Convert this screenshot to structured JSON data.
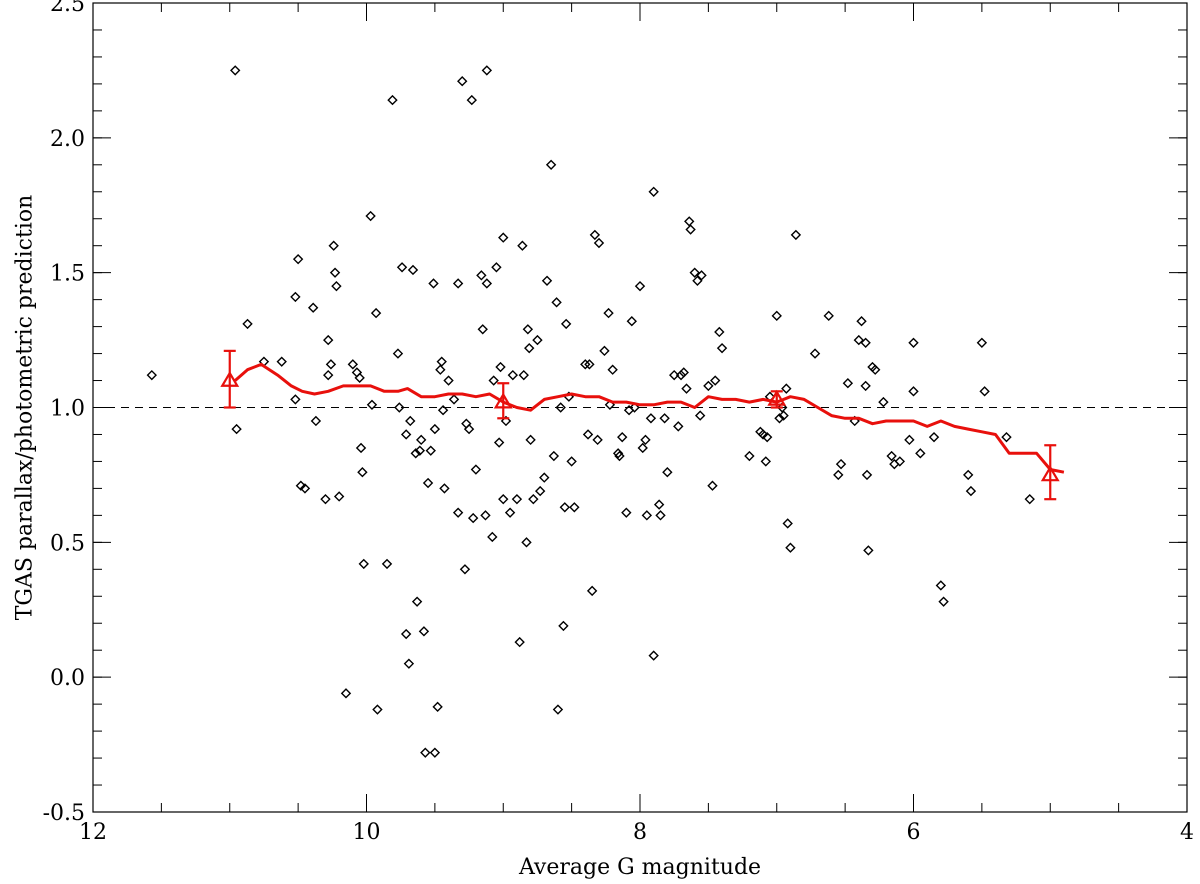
{
  "chart_data": {
    "type": "scatter",
    "xlabel": "Average G magnitude",
    "ylabel": "TGAS parallax/photometric prediction",
    "x_axis": {
      "min": 12,
      "max": 4,
      "reversed": true,
      "major_ticks": [
        12,
        10,
        8,
        6,
        4
      ],
      "minor_step": 0.5
    },
    "y_axis": {
      "min": -0.5,
      "max": 2.5,
      "major_ticks": [
        -0.5,
        0.0,
        0.5,
        1.0,
        1.5,
        2.0,
        2.5
      ],
      "minor_step": 0.1
    },
    "x_tick_labels": [
      "12",
      "10",
      "8",
      "6",
      "4"
    ],
    "y_tick_labels": [
      "-0.5",
      "0.0",
      "0.5",
      "1.0",
      "1.5",
      "2.0",
      "2.5"
    ],
    "reference_line": {
      "y": 1.0,
      "style": "dashed",
      "color": "#000000"
    },
    "colors": {
      "scatter": "#000000",
      "trend": "#e8100c"
    },
    "scatter_series": [
      [
        11.57,
        1.12
      ],
      [
        10.96,
        2.25
      ],
      [
        10.95,
        0.92
      ],
      [
        10.87,
        1.31
      ],
      [
        10.75,
        1.17
      ],
      [
        10.62,
        1.17
      ],
      [
        10.52,
        1.41
      ],
      [
        10.5,
        1.55
      ],
      [
        10.52,
        1.03
      ],
      [
        10.48,
        0.71
      ],
      [
        10.45,
        0.7
      ],
      [
        10.39,
        1.37
      ],
      [
        10.37,
        0.95
      ],
      [
        10.3,
        0.66
      ],
      [
        10.28,
        1.12
      ],
      [
        10.28,
        1.25
      ],
      [
        10.26,
        1.16
      ],
      [
        10.24,
        1.6
      ],
      [
        10.23,
        1.5
      ],
      [
        10.22,
        1.45
      ],
      [
        10.2,
        0.67
      ],
      [
        10.15,
        -0.06
      ],
      [
        10.1,
        1.16
      ],
      [
        10.07,
        1.13
      ],
      [
        10.05,
        1.11
      ],
      [
        10.04,
        0.85
      ],
      [
        10.03,
        0.76
      ],
      [
        10.02,
        0.42
      ],
      [
        9.97,
        1.71
      ],
      [
        9.96,
        1.01
      ],
      [
        9.93,
        1.35
      ],
      [
        9.92,
        -0.12
      ],
      [
        9.85,
        0.42
      ],
      [
        9.81,
        2.14
      ],
      [
        9.77,
        1.2
      ],
      [
        9.76,
        1.0
      ],
      [
        9.74,
        1.52
      ],
      [
        9.71,
        0.9
      ],
      [
        9.69,
        0.05
      ],
      [
        9.71,
        0.16
      ],
      [
        9.68,
        0.95
      ],
      [
        9.66,
        1.51
      ],
      [
        9.64,
        0.83
      ],
      [
        9.63,
        0.28
      ],
      [
        9.61,
        0.84
      ],
      [
        9.58,
        0.17
      ],
      [
        9.6,
        0.88
      ],
      [
        9.57,
        -0.28
      ],
      [
        9.55,
        0.72
      ],
      [
        9.53,
        0.84
      ],
      [
        9.51,
        1.46
      ],
      [
        9.5,
        0.92
      ],
      [
        9.5,
        -0.28
      ],
      [
        9.48,
        -0.11
      ],
      [
        9.46,
        1.14
      ],
      [
        9.45,
        1.17
      ],
      [
        9.44,
        0.99
      ],
      [
        9.43,
        0.7
      ],
      [
        9.4,
        1.1
      ],
      [
        9.36,
        1.03
      ],
      [
        9.33,
        1.46
      ],
      [
        9.33,
        0.61
      ],
      [
        9.3,
        2.21
      ],
      [
        9.28,
        0.4
      ],
      [
        9.27,
        0.94
      ],
      [
        9.25,
        0.92
      ],
      [
        9.23,
        2.14
      ],
      [
        9.22,
        0.59
      ],
      [
        9.2,
        0.77
      ],
      [
        9.16,
        1.49
      ],
      [
        9.15,
        1.29
      ],
      [
        9.13,
        0.6
      ],
      [
        9.12,
        2.25
      ],
      [
        9.12,
        1.46
      ],
      [
        9.08,
        0.52
      ],
      [
        9.07,
        1.1
      ],
      [
        9.05,
        1.52
      ],
      [
        9.03,
        0.87
      ],
      [
        9.02,
        1.15
      ],
      [
        9.0,
        1.63
      ],
      [
        9.0,
        0.66
      ],
      [
        8.98,
        0.95
      ],
      [
        8.95,
        0.61
      ],
      [
        8.93,
        1.12
      ],
      [
        8.9,
        0.66
      ],
      [
        8.88,
        0.13
      ],
      [
        8.86,
        1.6
      ],
      [
        8.85,
        1.12
      ],
      [
        8.83,
        0.5
      ],
      [
        8.82,
        1.29
      ],
      [
        8.81,
        1.22
      ],
      [
        8.8,
        0.88
      ],
      [
        8.78,
        0.66
      ],
      [
        8.75,
        1.25
      ],
      [
        8.73,
        0.69
      ],
      [
        8.7,
        0.74
      ],
      [
        8.68,
        1.47
      ],
      [
        8.65,
        1.9
      ],
      [
        8.63,
        0.82
      ],
      [
        8.61,
        1.39
      ],
      [
        8.6,
        -0.12
      ],
      [
        8.58,
        1.0
      ],
      [
        8.56,
        0.19
      ],
      [
        8.55,
        0.63
      ],
      [
        8.54,
        1.31
      ],
      [
        8.52,
        1.04
      ],
      [
        8.5,
        0.8
      ],
      [
        8.48,
        0.63
      ],
      [
        8.4,
        1.16
      ],
      [
        8.38,
        0.9
      ],
      [
        8.37,
        1.16
      ],
      [
        8.35,
        0.32
      ],
      [
        8.33,
        1.64
      ],
      [
        8.31,
        0.88
      ],
      [
        8.3,
        1.61
      ],
      [
        8.26,
        1.21
      ],
      [
        8.23,
        1.35
      ],
      [
        8.22,
        1.01
      ],
      [
        8.2,
        1.14
      ],
      [
        8.16,
        0.83
      ],
      [
        8.15,
        0.82
      ],
      [
        8.13,
        0.89
      ],
      [
        8.1,
        0.61
      ],
      [
        8.08,
        0.99
      ],
      [
        8.06,
        1.32
      ],
      [
        8.04,
        1.0
      ],
      [
        8.0,
        1.45
      ],
      [
        7.98,
        0.85
      ],
      [
        7.96,
        0.88
      ],
      [
        7.95,
        0.6
      ],
      [
        7.92,
        0.96
      ],
      [
        7.9,
        1.8
      ],
      [
        7.9,
        0.08
      ],
      [
        7.86,
        0.64
      ],
      [
        7.85,
        0.6
      ],
      [
        7.82,
        0.96
      ],
      [
        7.8,
        0.76
      ],
      [
        7.75,
        1.12
      ],
      [
        7.72,
        0.93
      ],
      [
        7.7,
        1.12
      ],
      [
        7.68,
        1.13
      ],
      [
        7.66,
        1.07
      ],
      [
        7.64,
        1.69
      ],
      [
        7.63,
        1.66
      ],
      [
        7.6,
        1.5
      ],
      [
        7.58,
        1.47
      ],
      [
        7.56,
        0.97
      ],
      [
        7.55,
        1.49
      ],
      [
        7.5,
        1.08
      ],
      [
        7.47,
        0.71
      ],
      [
        7.45,
        1.1
      ],
      [
        7.42,
        1.28
      ],
      [
        7.4,
        1.22
      ],
      [
        7.2,
        0.82
      ],
      [
        7.12,
        0.91
      ],
      [
        7.1,
        0.9
      ],
      [
        7.08,
        0.8
      ],
      [
        7.07,
        0.89
      ],
      [
        7.05,
        1.04
      ],
      [
        7.0,
        1.34
      ],
      [
        6.98,
        0.96
      ],
      [
        6.96,
        1.0
      ],
      [
        6.95,
        0.97
      ],
      [
        6.93,
        1.07
      ],
      [
        6.92,
        0.57
      ],
      [
        6.9,
        0.48
      ],
      [
        6.86,
        1.64
      ],
      [
        6.72,
        1.2
      ],
      [
        6.62,
        1.34
      ],
      [
        6.55,
        0.75
      ],
      [
        6.53,
        0.79
      ],
      [
        6.48,
        1.09
      ],
      [
        6.43,
        0.95
      ],
      [
        6.4,
        1.25
      ],
      [
        6.38,
        1.32
      ],
      [
        6.35,
        1.24
      ],
      [
        6.35,
        1.08
      ],
      [
        6.34,
        0.75
      ],
      [
        6.33,
        0.47
      ],
      [
        6.3,
        1.15
      ],
      [
        6.28,
        1.14
      ],
      [
        6.22,
        1.02
      ],
      [
        6.16,
        0.82
      ],
      [
        6.14,
        0.79
      ],
      [
        6.1,
        0.8
      ],
      [
        6.03,
        0.88
      ],
      [
        6.0,
        1.06
      ],
      [
        6.0,
        1.24
      ],
      [
        5.95,
        0.83
      ],
      [
        5.85,
        0.89
      ],
      [
        5.8,
        0.34
      ],
      [
        5.78,
        0.28
      ],
      [
        5.6,
        0.75
      ],
      [
        5.58,
        0.69
      ],
      [
        5.5,
        1.24
      ],
      [
        5.48,
        1.06
      ],
      [
        5.32,
        0.89
      ],
      [
        5.15,
        0.66
      ]
    ],
    "running_median": [
      [
        10.96,
        1.1
      ],
      [
        10.87,
        1.14
      ],
      [
        10.77,
        1.16
      ],
      [
        10.65,
        1.12
      ],
      [
        10.55,
        1.08
      ],
      [
        10.47,
        1.06
      ],
      [
        10.38,
        1.05
      ],
      [
        10.28,
        1.06
      ],
      [
        10.17,
        1.08
      ],
      [
        10.07,
        1.08
      ],
      [
        9.97,
        1.08
      ],
      [
        9.87,
        1.06
      ],
      [
        9.77,
        1.06
      ],
      [
        9.7,
        1.07
      ],
      [
        9.6,
        1.04
      ],
      [
        9.5,
        1.04
      ],
      [
        9.4,
        1.05
      ],
      [
        9.3,
        1.05
      ],
      [
        9.2,
        1.04
      ],
      [
        9.1,
        1.05
      ],
      [
        9.0,
        1.02
      ],
      [
        8.9,
        1.0
      ],
      [
        8.8,
        0.99
      ],
      [
        8.7,
        1.03
      ],
      [
        8.6,
        1.04
      ],
      [
        8.5,
        1.05
      ],
      [
        8.4,
        1.04
      ],
      [
        8.3,
        1.04
      ],
      [
        8.2,
        1.02
      ],
      [
        8.1,
        1.02
      ],
      [
        8.0,
        1.01
      ],
      [
        7.9,
        1.01
      ],
      [
        7.8,
        1.02
      ],
      [
        7.7,
        1.02
      ],
      [
        7.6,
        1.0
      ],
      [
        7.5,
        1.04
      ],
      [
        7.4,
        1.03
      ],
      [
        7.3,
        1.03
      ],
      [
        7.2,
        1.02
      ],
      [
        7.1,
        1.03
      ],
      [
        7.0,
        1.02
      ],
      [
        6.9,
        1.04
      ],
      [
        6.8,
        1.03
      ],
      [
        6.7,
        1.0
      ],
      [
        6.6,
        0.97
      ],
      [
        6.5,
        0.96
      ],
      [
        6.4,
        0.96
      ],
      [
        6.3,
        0.94
      ],
      [
        6.2,
        0.95
      ],
      [
        6.1,
        0.95
      ],
      [
        6.0,
        0.95
      ],
      [
        5.9,
        0.93
      ],
      [
        5.8,
        0.95
      ],
      [
        5.7,
        0.93
      ],
      [
        5.6,
        0.92
      ],
      [
        5.5,
        0.91
      ],
      [
        5.4,
        0.9
      ],
      [
        5.3,
        0.83
      ],
      [
        5.2,
        0.83
      ],
      [
        5.1,
        0.83
      ],
      [
        5.0,
        0.77
      ],
      [
        4.9,
        0.76
      ]
    ],
    "binned_points": [
      {
        "x": 11.0,
        "y": 1.1,
        "err_low": 1.0,
        "err_high": 1.21
      },
      {
        "x": 9.0,
        "y": 1.02,
        "err_low": 0.96,
        "err_high": 1.09
      },
      {
        "x": 7.0,
        "y": 1.03,
        "err_low": 1.0,
        "err_high": 1.06
      },
      {
        "x": 5.0,
        "y": 0.75,
        "err_low": 0.66,
        "err_high": 0.86
      }
    ]
  }
}
